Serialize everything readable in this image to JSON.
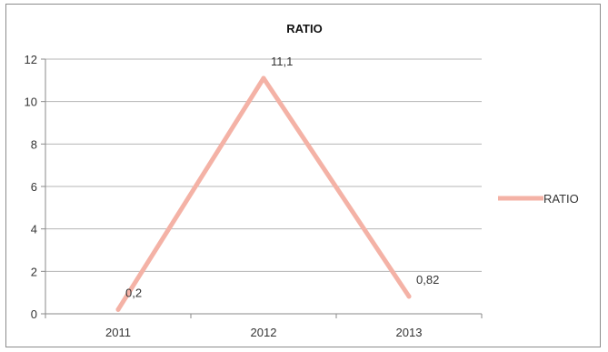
{
  "chart_data": {
    "type": "line",
    "title": "RATIO",
    "xlabel": "",
    "ylabel": "",
    "categories": [
      "2011",
      "2012",
      "2013"
    ],
    "series": [
      {
        "name": "RATIO",
        "values": [
          0.2,
          11.1,
          0.82
        ],
        "labels": [
          "0,2",
          "11,1",
          "0,82"
        ],
        "color": "#f4b2a6"
      }
    ],
    "ylim": [
      0,
      12
    ],
    "yticks": [
      0,
      2,
      4,
      6,
      8,
      10,
      12
    ],
    "grid": true,
    "legend": "right"
  }
}
